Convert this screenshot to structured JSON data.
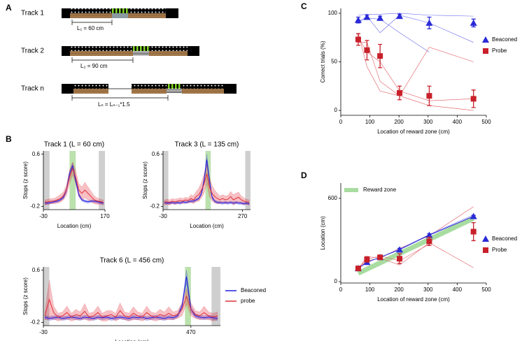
{
  "panel_labels": [
    "A",
    "B",
    "C",
    "D"
  ],
  "diagram": {
    "tracks": [
      {
        "label": "Track 1",
        "length": "L₁ = 60 cm"
      },
      {
        "label": "Track 2",
        "length": "L₂ = 90 cm"
      },
      {
        "label": "Track n",
        "length": "Lₙ = Lₙ₋₁*1.5"
      }
    ]
  },
  "chart_data": [
    {
      "type": "line",
      "title": "Track 1 (L = 60 cm)",
      "x_label": "Location (cm)",
      "y_label": "Stops (z score)",
      "xlim": [
        -30,
        170
      ],
      "xticks": [
        -30,
        170
      ],
      "ylim": [
        -0.25,
        0.65
      ],
      "yticks": [
        -0.2,
        0.6
      ],
      "zones": [
        {
          "x": [
            -30,
            -10
          ],
          "color": "#bbbbbb"
        },
        {
          "x": [
            55,
            75
          ],
          "color": "#9ed48a"
        },
        {
          "x": [
            150,
            170
          ],
          "color": "#bbbbbb"
        }
      ],
      "x": [
        -25,
        -15,
        -5,
        5,
        15,
        25,
        35,
        45,
        55,
        65,
        75,
        85,
        95,
        105,
        115,
        125,
        135,
        145,
        155,
        165
      ],
      "series": [
        {
          "name": "Beaconed",
          "color": "#2020e0",
          "values": [
            -0.15,
            -0.15,
            -0.14,
            -0.13,
            -0.12,
            -0.1,
            -0.06,
            0.05,
            0.3,
            0.42,
            0.2,
            -0.02,
            -0.1,
            -0.12,
            -0.13,
            -0.12,
            -0.12,
            -0.13,
            -0.14,
            -0.15
          ],
          "error": [
            0.02,
            0.02,
            0.02,
            0.02,
            0.02,
            0.02,
            0.03,
            0.04,
            0.05,
            0.05,
            0.05,
            0.03,
            0.02,
            0.02,
            0.02,
            0.02,
            0.02,
            0.02,
            0.02,
            0.02
          ]
        },
        {
          "name": "probe",
          "color": "#e0303a",
          "values": [
            -0.14,
            -0.13,
            -0.12,
            -0.12,
            -0.1,
            -0.08,
            -0.04,
            0.05,
            0.25,
            0.38,
            0.25,
            0.05,
            0.0,
            0.05,
            0.0,
            -0.05,
            -0.1,
            -0.12,
            -0.13,
            -0.14
          ],
          "error": [
            0.04,
            0.04,
            0.04,
            0.04,
            0.05,
            0.06,
            0.06,
            0.08,
            0.1,
            0.1,
            0.1,
            0.1,
            0.1,
            0.12,
            0.1,
            0.08,
            0.06,
            0.05,
            0.04,
            0.04
          ]
        }
      ]
    },
    {
      "type": "line",
      "title": "Track 3 (L = 135 cm)",
      "x_label": "Location (cm)",
      "y_label": "Stops (z score)",
      "xlim": [
        -30,
        300
      ],
      "xticks": [
        -30,
        270
      ],
      "ylim": [
        -0.25,
        0.65
      ],
      "yticks": [
        -0.2,
        0.6
      ],
      "zones": [
        {
          "x": [
            -30,
            -10
          ],
          "color": "#bbbbbb"
        },
        {
          "x": [
            130,
            150
          ],
          "color": "#9ed48a"
        },
        {
          "x": [
            280,
            300
          ],
          "color": "#bbbbbb"
        }
      ],
      "x": [
        -25,
        -15,
        -5,
        5,
        15,
        25,
        35,
        45,
        55,
        65,
        75,
        85,
        95,
        105,
        115,
        125,
        135,
        145,
        155,
        165,
        175,
        185,
        195,
        205,
        215,
        225,
        235,
        245,
        255,
        265,
        275,
        285,
        295
      ],
      "series": [
        {
          "name": "Beaconed",
          "color": "#2020e0",
          "values": [
            -0.14,
            -0.15,
            -0.15,
            -0.14,
            -0.15,
            -0.14,
            -0.15,
            -0.13,
            -0.14,
            -0.13,
            -0.12,
            -0.12,
            -0.1,
            -0.08,
            0.0,
            0.2,
            0.52,
            0.2,
            -0.06,
            -0.12,
            -0.14,
            -0.14,
            -0.15,
            -0.14,
            -0.15,
            -0.14,
            -0.15,
            -0.14,
            -0.15,
            -0.15,
            -0.16,
            -0.15,
            -0.16
          ],
          "error": [
            0.02,
            0.02,
            0.02,
            0.02,
            0.02,
            0.02,
            0.02,
            0.02,
            0.02,
            0.02,
            0.02,
            0.02,
            0.02,
            0.02,
            0.03,
            0.05,
            0.08,
            0.05,
            0.03,
            0.02,
            0.02,
            0.02,
            0.02,
            0.02,
            0.02,
            0.02,
            0.02,
            0.02,
            0.02,
            0.02,
            0.02,
            0.02,
            0.02
          ]
        },
        {
          "name": "probe",
          "color": "#e0303a",
          "values": [
            -0.14,
            -0.13,
            -0.14,
            -0.12,
            -0.13,
            -0.12,
            -0.11,
            -0.12,
            -0.1,
            -0.11,
            -0.08,
            -0.1,
            -0.05,
            -0.02,
            0.05,
            0.15,
            0.3,
            0.1,
            0.0,
            -0.05,
            -0.08,
            -0.1,
            -0.08,
            -0.1,
            -0.09,
            -0.05,
            -0.1,
            -0.08,
            -0.06,
            -0.1,
            -0.12,
            -0.13,
            -0.14
          ],
          "error": [
            0.04,
            0.04,
            0.04,
            0.04,
            0.04,
            0.04,
            0.04,
            0.04,
            0.04,
            0.04,
            0.06,
            0.06,
            0.08,
            0.1,
            0.12,
            0.15,
            0.15,
            0.15,
            0.12,
            0.1,
            0.08,
            0.06,
            0.06,
            0.06,
            0.06,
            0.08,
            0.08,
            0.08,
            0.08,
            0.06,
            0.05,
            0.04,
            0.04
          ]
        }
      ]
    },
    {
      "type": "line",
      "title": "Track 6 (L = 456 cm)",
      "x_label": "Location (cm)",
      "y_label": "Stops (z score)",
      "xlim": [
        -30,
        570
      ],
      "xticks": [
        -30,
        470
      ],
      "ylim": [
        -0.25,
        0.65
      ],
      "yticks": [
        -0.2,
        0.6
      ],
      "zones": [
        {
          "x": [
            -30,
            -10
          ],
          "color": "#bbbbbb"
        },
        {
          "x": [
            450,
            470
          ],
          "color": "#9ed48a"
        },
        {
          "x": [
            540,
            570
          ],
          "color": "#bbbbbb"
        }
      ],
      "x": [
        -25,
        -10,
        5,
        20,
        35,
        50,
        65,
        80,
        95,
        110,
        125,
        140,
        155,
        170,
        185,
        200,
        215,
        230,
        245,
        260,
        275,
        290,
        305,
        320,
        335,
        350,
        365,
        380,
        395,
        410,
        425,
        440,
        455,
        470,
        485,
        500,
        515,
        530,
        545,
        560
      ],
      "legend": true,
      "series": [
        {
          "name": "Beaconed",
          "color": "#2020e0",
          "values": [
            -0.12,
            -0.14,
            -0.13,
            -0.12,
            -0.14,
            -0.13,
            -0.12,
            -0.13,
            -0.14,
            -0.12,
            -0.13,
            -0.14,
            -0.12,
            -0.13,
            -0.12,
            -0.14,
            -0.13,
            -0.12,
            -0.13,
            -0.14,
            -0.12,
            -0.13,
            -0.12,
            -0.14,
            -0.13,
            -0.12,
            -0.13,
            -0.14,
            -0.12,
            -0.13,
            -0.1,
            0.05,
            0.5,
            0.0,
            -0.1,
            -0.12,
            -0.13,
            -0.12,
            -0.13,
            -0.14
          ],
          "error": [
            0.03,
            0.03,
            0.03,
            0.03,
            0.03,
            0.03,
            0.03,
            0.03,
            0.03,
            0.03,
            0.03,
            0.03,
            0.03,
            0.03,
            0.03,
            0.03,
            0.03,
            0.03,
            0.03,
            0.03,
            0.03,
            0.03,
            0.03,
            0.03,
            0.03,
            0.03,
            0.03,
            0.03,
            0.03,
            0.03,
            0.03,
            0.05,
            0.1,
            0.05,
            0.03,
            0.03,
            0.03,
            0.03,
            0.03,
            0.03
          ]
        },
        {
          "name": "probe",
          "color": "#e0303a",
          "values": [
            -0.1,
            0.15,
            -0.05,
            -0.12,
            -0.1,
            -0.05,
            -0.12,
            -0.08,
            -0.1,
            -0.03,
            -0.12,
            -0.1,
            -0.05,
            -0.12,
            -0.1,
            -0.08,
            -0.12,
            -0.02,
            -0.1,
            -0.12,
            -0.06,
            -0.1,
            -0.12,
            -0.05,
            -0.1,
            -0.12,
            -0.08,
            -0.1,
            -0.06,
            -0.1,
            -0.08,
            0.0,
            0.2,
            0.0,
            -0.08,
            -0.1,
            -0.05,
            -0.1,
            -0.12,
            -0.1
          ],
          "error": [
            0.06,
            0.3,
            0.1,
            0.06,
            0.06,
            0.1,
            0.06,
            0.08,
            0.06,
            0.12,
            0.06,
            0.06,
            0.1,
            0.06,
            0.08,
            0.06,
            0.06,
            0.12,
            0.06,
            0.06,
            0.1,
            0.06,
            0.06,
            0.1,
            0.06,
            0.06,
            0.08,
            0.06,
            0.1,
            0.06,
            0.06,
            0.1,
            0.12,
            0.1,
            0.06,
            0.06,
            0.1,
            0.06,
            0.06,
            0.06
          ]
        }
      ]
    },
    {
      "type": "scatter",
      "x_label": "Location of reward zone (cm)",
      "y_label": "Correct trials (%)",
      "xlim": [
        0,
        500
      ],
      "xticks": [
        0,
        100,
        200,
        300,
        400,
        500
      ],
      "ylim": [
        -5,
        105
      ],
      "yticks": [
        0,
        50,
        100
      ],
      "x": [
        60,
        90,
        135,
        202,
        304,
        456
      ],
      "series": [
        {
          "color": "#6a6af0",
          "values": [
            98,
            99,
            99,
            100,
            98,
            97
          ]
        },
        {
          "color": "#6a6af0",
          "values": [
            90,
            97,
            80,
            98,
            90,
            70
          ]
        },
        {
          "color": "#6a6af0",
          "values": [
            92,
            95,
            94,
            80,
            60,
            null
          ]
        },
        {
          "color": "#e0575e",
          "values": [
            80,
            45,
            20,
            15,
            5,
            0
          ]
        },
        {
          "color": "#e0575e",
          "values": [
            70,
            70,
            30,
            15,
            65,
            50
          ]
        },
        {
          "color": "#e0575e",
          "values": [
            75,
            60,
            50,
            20,
            10,
            12
          ]
        },
        {
          "name": "Beaconed",
          "color": "#2a2ad8",
          "marker": "triangle",
          "values": [
            93,
            96,
            95,
            97,
            90,
            90
          ],
          "error": [
            3,
            2,
            2,
            2,
            6,
            4
          ]
        },
        {
          "name": "Probe",
          "color": "#c8202a",
          "marker": "square",
          "values": [
            73,
            62,
            56,
            18,
            15,
            12
          ],
          "error": [
            6,
            10,
            12,
            7,
            10,
            9
          ]
        }
      ]
    },
    {
      "type": "scatter",
      "x_label": "Location of reward zone (cm)",
      "y_label": "Location (cm)",
      "xlim": [
        0,
        500
      ],
      "xticks": [
        0,
        100,
        200,
        300,
        400,
        500
      ],
      "ylim": [
        -10,
        710
      ],
      "yticks": [
        0,
        600
      ],
      "x": [
        60,
        90,
        135,
        202,
        304,
        456
      ],
      "series": [
        {
          "name": "Reward zone",
          "color": "#a8dca0",
          "marker": "band",
          "values": [
            60,
            90,
            135,
            202,
            304,
            456
          ]
        },
        {
          "color": "#e0575e",
          "values": [
            95,
            150,
            170,
            120,
            280,
            100
          ]
        },
        {
          "color": "#e0575e",
          "values": [
            90,
            180,
            170,
            240,
            330,
            540
          ]
        },
        {
          "color": "#e0575e",
          "values": [
            100,
            160,
            185,
            150,
            270,
            null
          ]
        },
        {
          "color": "#6a6af0",
          "values": [
            95,
            140,
            175,
            235,
            340,
            480
          ]
        },
        {
          "name": "Beaconed",
          "color": "#2a2ad8",
          "marker": "triangle",
          "line": true,
          "values": [
            95,
            140,
            175,
            230,
            335,
            470
          ],
          "error": [
            8,
            10,
            8,
            10,
            10,
            8
          ]
        },
        {
          "name": "Probe",
          "color": "#c8202a",
          "marker": "square",
          "values": [
            95,
            160,
            175,
            165,
            290,
            360
          ],
          "error": [
            15,
            20,
            15,
            35,
            30,
            65
          ]
        }
      ]
    }
  ]
}
